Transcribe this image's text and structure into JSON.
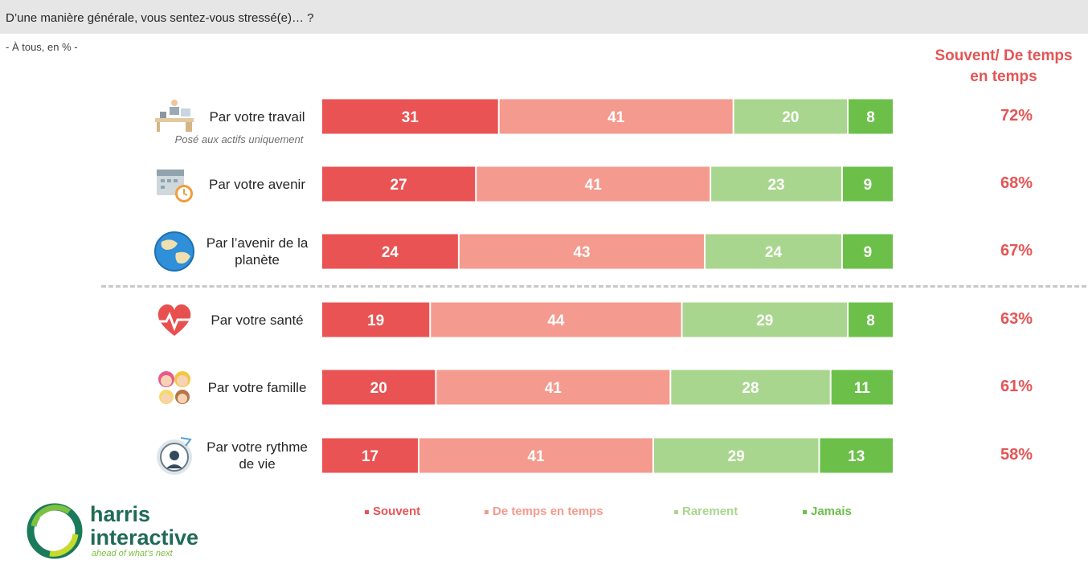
{
  "title": "D’une manière générale, vous sentez-vous stressé(e)… ?",
  "subtitle": "- À tous, en % -",
  "column_header": {
    "line1": "Souvent/ De temps",
    "line2": "en temps"
  },
  "note": "Posé aux actifs uniquement",
  "colors": {
    "Souvent": "#e95353",
    "De temps en temps": "#f59a8e",
    "Rarement": "#a9d68e",
    "Jamais": "#6cc04a",
    "accent": "#e45555"
  },
  "rows": [
    {
      "label_lines": [
        "Par votre travail"
      ],
      "icon": "office-desk-icon",
      "total": "72%"
    },
    {
      "label_lines": [
        "Par votre avenir"
      ],
      "icon": "calendar-clock-icon",
      "total": "68%"
    },
    {
      "label_lines": [
        "Par l’avenir de la",
        "planète"
      ],
      "icon": "globe-icon",
      "total": "67%"
    },
    {
      "label_lines": [
        "Par votre santé"
      ],
      "icon": "heart-pulse-icon",
      "total": "63%"
    },
    {
      "label_lines": [
        "Par votre famille"
      ],
      "icon": "family-icon",
      "total": "61%"
    },
    {
      "label_lines": [
        "Par votre rythme",
        "de vie"
      ],
      "icon": "clock-person-icon",
      "total": "58%"
    }
  ],
  "chart_data": {
    "type": "bar",
    "orientation": "horizontal",
    "stacked": true,
    "categories": [
      "Par votre travail",
      "Par votre avenir",
      "Par l’avenir de la planète",
      "Par votre santé",
      "Par votre famille",
      "Par votre rythme de vie"
    ],
    "series": [
      {
        "name": "Souvent",
        "values": [
          31,
          27,
          24,
          19,
          20,
          17
        ]
      },
      {
        "name": "De temps en temps",
        "values": [
          41,
          41,
          43,
          44,
          41,
          41
        ]
      },
      {
        "name": "Rarement",
        "values": [
          20,
          23,
          24,
          29,
          28,
          29
        ]
      },
      {
        "name": "Jamais",
        "values": [
          8,
          9,
          9,
          8,
          11,
          13
        ]
      }
    ],
    "legend_position": "bottom",
    "grid": false
  },
  "logo": {
    "line1": "harris",
    "line2": "interactive",
    "tagline": "ahead of what’s next"
  }
}
